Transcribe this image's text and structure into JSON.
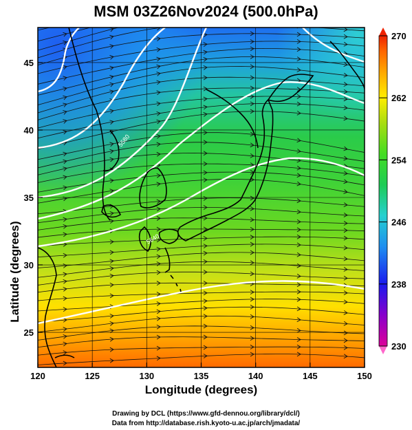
{
  "title": "MSM 03Z26Nov2024 (500.0hPa)",
  "x_axis": {
    "label": "Longitude (degrees)",
    "range": [
      120,
      150
    ],
    "ticks": [
      120,
      125,
      130,
      135,
      140,
      145,
      150
    ]
  },
  "y_axis": {
    "label": "Latitude  (degrees)",
    "range": [
      22.4,
      47.6
    ],
    "ticks": [
      25,
      30,
      35,
      40,
      45
    ]
  },
  "colorbar": {
    "range": [
      230,
      270
    ],
    "ticks": [
      270,
      262,
      254,
      246,
      238,
      230
    ],
    "colors": [
      "#dd0099",
      "#8800cc",
      "#1a1aee",
      "#1e8ef0",
      "#25d0d0",
      "#1ecc55",
      "#44dd22",
      "#aadd11",
      "#ffee00",
      "#ffaa00",
      "#ff6600",
      "#ee2200"
    ]
  },
  "contour_labels": [
    "5580",
    "5640"
  ],
  "credits": {
    "line1": "Drawing by DCL (https://www.gfd-dennou.org/library/dcl/)",
    "line2": "Data from http://database.rish.kyoto-u.ac.jp/arch/jmadata/"
  }
}
